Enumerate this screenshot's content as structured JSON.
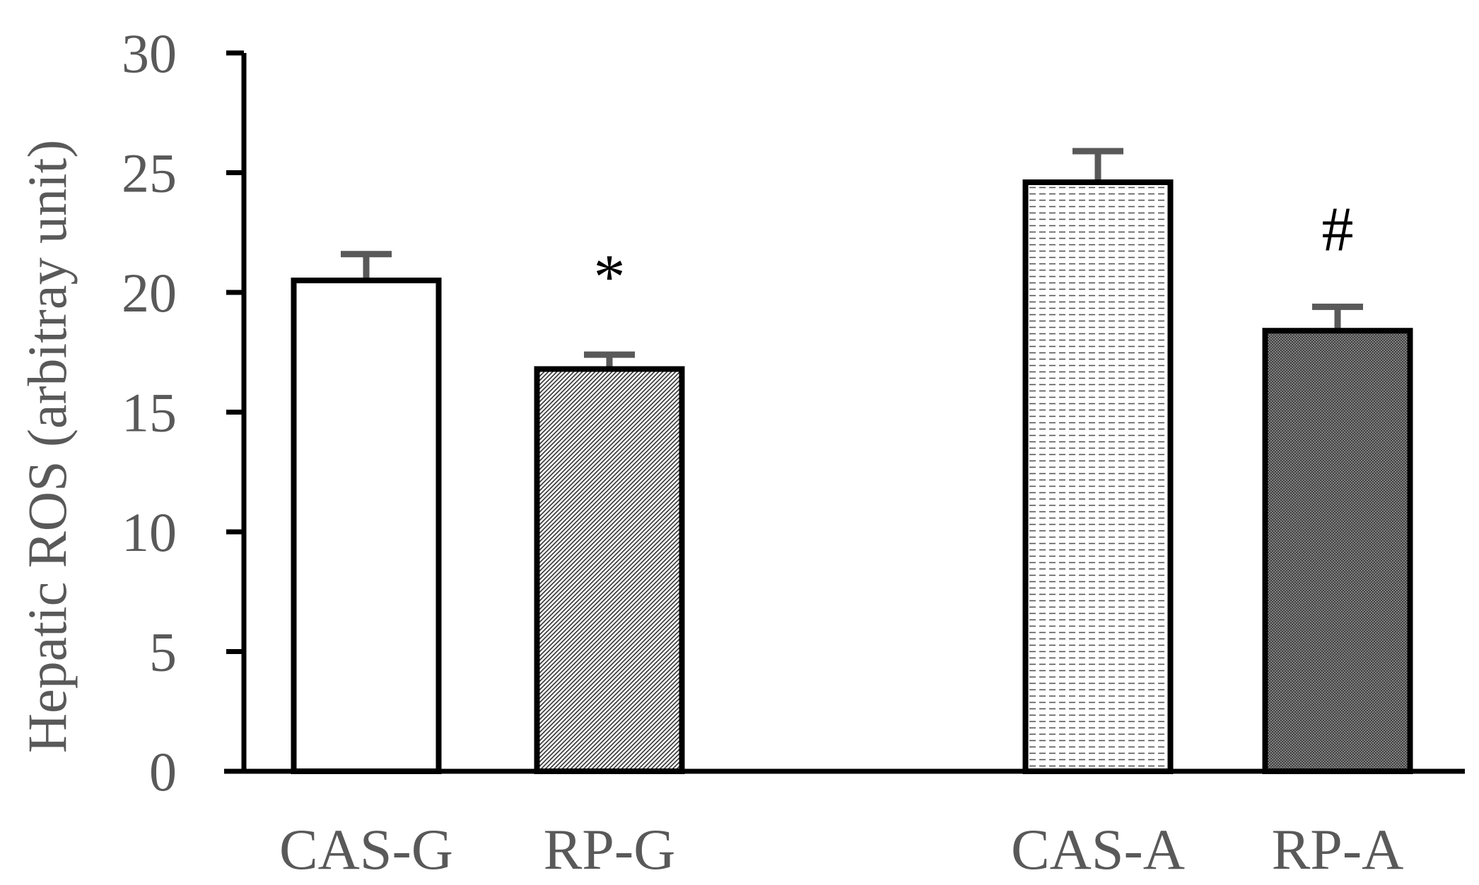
{
  "chart_data": {
    "type": "bar",
    "title": "",
    "xlabel": "",
    "ylabel": "Hepatic ROS (arbitray unit)",
    "ylim": [
      0,
      30
    ],
    "yticks": [
      0,
      5,
      10,
      15,
      20,
      25,
      30
    ],
    "grid": false,
    "legend": "none",
    "categories": [
      "CAS-G",
      "RP-G",
      "CAS-A",
      "RP-A"
    ],
    "values": [
      20.5,
      16.8,
      24.6,
      18.4
    ],
    "errors": [
      1.1,
      0.6,
      1.3,
      1.0
    ],
    "fills": [
      "plain",
      "diagonal-hatch",
      "dashed-dots",
      "dense-crosshatch"
    ],
    "annotations": [
      "",
      "*",
      "",
      "#"
    ],
    "colors": {
      "bar_outline": "#000000",
      "error_bar": "#595959",
      "text": "#595959"
    }
  }
}
